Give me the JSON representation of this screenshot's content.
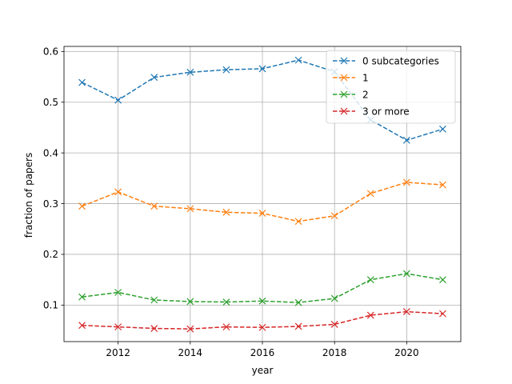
{
  "chart_data": {
    "type": "line",
    "xlabel": "year",
    "ylabel": "fraction of papers",
    "xlim": [
      2010.5,
      2021.5
    ],
    "ylim": [
      0.028,
      0.61
    ],
    "xticks": [
      2012,
      2014,
      2016,
      2018,
      2020
    ],
    "yticks": [
      0.1,
      0.2,
      0.3,
      0.4,
      0.5,
      0.6
    ],
    "grid": true,
    "legend_position": "top-right",
    "marker": "x",
    "line_style": "dashed",
    "x": [
      2011,
      2012,
      2013,
      2014,
      2015,
      2016,
      2017,
      2018,
      2019,
      2020,
      2021
    ],
    "series": [
      {
        "name": "0 subcategories",
        "color": "#1f77b4",
        "values": [
          0.539,
          0.504,
          0.549,
          0.559,
          0.564,
          0.566,
          0.583,
          0.56,
          0.465,
          0.425,
          0.447
        ]
      },
      {
        "name": "1",
        "color": "#ff7f0e",
        "values": [
          0.295,
          0.323,
          0.295,
          0.29,
          0.283,
          0.281,
          0.265,
          0.276,
          0.32,
          0.342,
          0.337
        ]
      },
      {
        "name": "2",
        "color": "#2ca02c",
        "values": [
          0.116,
          0.125,
          0.11,
          0.107,
          0.106,
          0.108,
          0.105,
          0.113,
          0.15,
          0.162,
          0.15
        ]
      },
      {
        "name": "3 or more",
        "color": "#d62728",
        "values": [
          0.06,
          0.057,
          0.054,
          0.053,
          0.057,
          0.056,
          0.058,
          0.062,
          0.08,
          0.087,
          0.083
        ]
      }
    ]
  }
}
